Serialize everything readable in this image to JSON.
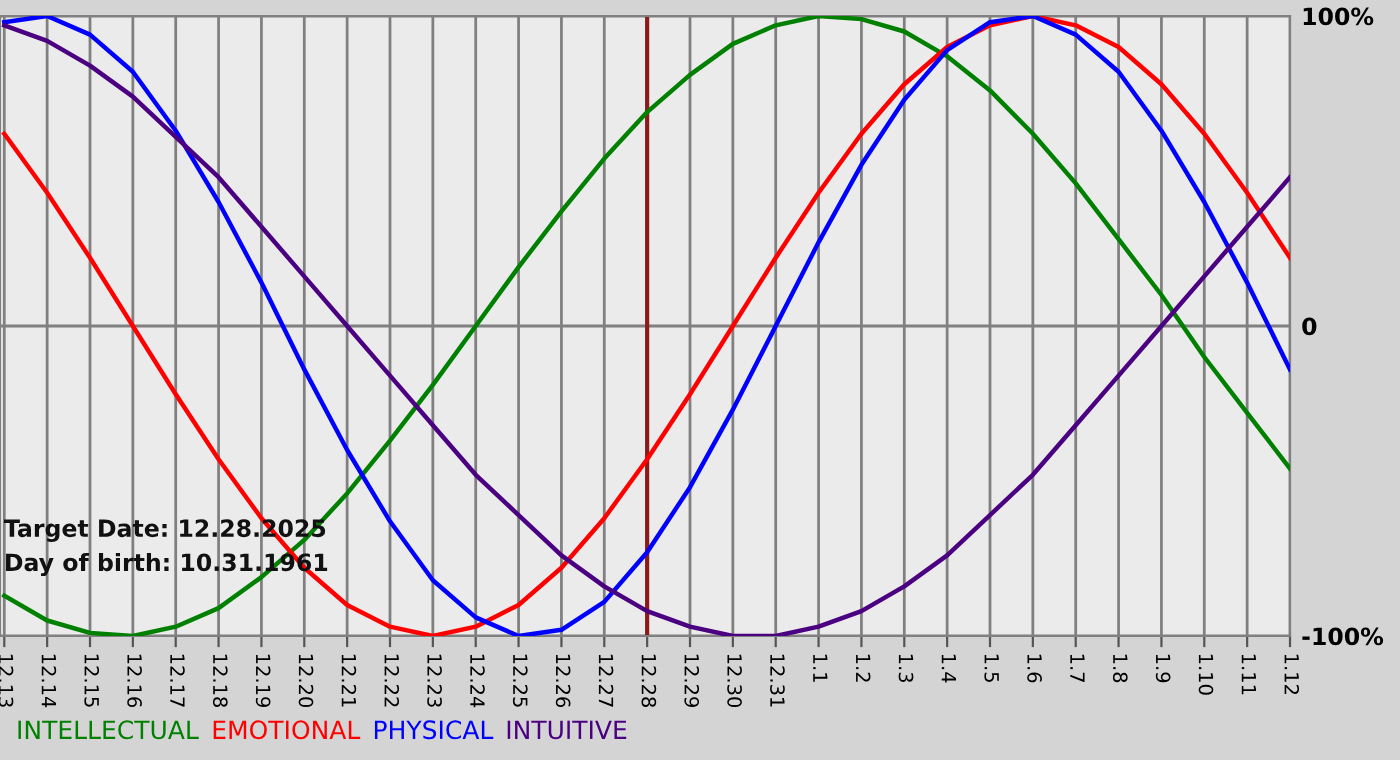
{
  "chart_data": {
    "type": "line",
    "categories": [
      "12.13",
      "12.14",
      "12.15",
      "12.16",
      "12.17",
      "12.18",
      "12.19",
      "12.20",
      "12.21",
      "12.22",
      "12.23",
      "12.24",
      "12.25",
      "12.26",
      "12.27",
      "12.28",
      "12.29",
      "12.30",
      "12.31",
      "1.1",
      "1.2",
      "1.3",
      "1.4",
      "1.5",
      "1.6",
      "1.7",
      "1.8",
      "1.9",
      "1.10",
      "1.11",
      "1.12"
    ],
    "series": [
      {
        "name": "INTELLECTUAL",
        "color": "#008000",
        "values": [
          -87,
          -95,
          -99,
          -100,
          -97,
          -91,
          -81,
          -69,
          -54,
          -37,
          -19,
          0,
          19,
          37,
          54,
          69,
          81,
          91,
          97,
          100,
          99,
          95,
          87,
          76,
          62,
          46,
          28,
          10,
          -10,
          -28,
          -46
        ]
      },
      {
        "name": "EMOTIONAL",
        "color": "#ff0000",
        "values": [
          62,
          43,
          22,
          0,
          -22,
          -43,
          -62,
          -78,
          -90,
          -97,
          -100,
          -97,
          -90,
          -78,
          -62,
          -43,
          -22,
          0,
          22,
          43,
          62,
          78,
          90,
          97,
          100,
          97,
          90,
          78,
          62,
          43,
          22
        ]
      },
      {
        "name": "PHYSICAL",
        "color": "#0000ff",
        "values": [
          98,
          100,
          94,
          82,
          63,
          40,
          14,
          -14,
          -40,
          -63,
          -82,
          -94,
          -100,
          -98,
          -89,
          -73,
          -52,
          -27,
          0,
          27,
          52,
          73,
          89,
          98,
          100,
          94,
          82,
          63,
          40,
          14,
          -14
        ]
      },
      {
        "name": "INTUITIVE",
        "color": "#4b0082",
        "values": [
          97,
          92,
          84,
          74,
          61,
          48,
          32,
          16,
          0,
          -16,
          -32,
          -48,
          -61,
          -74,
          -84,
          -92,
          -97,
          -100,
          -100,
          -97,
          -92,
          -84,
          -74,
          -61,
          -48,
          -32,
          -16,
          0,
          16,
          32,
          48
        ]
      }
    ],
    "ylim": [
      -100,
      100
    ],
    "yticks": [
      {
        "value": 100,
        "label": "100%"
      },
      0,
      {
        "value": -100,
        "label": "-100%"
      }
    ],
    "grid": true,
    "legend": "bottom",
    "marker": "none",
    "line_style": "solid",
    "ref_lines": [
      {
        "axis": "x",
        "value": "12.28",
        "color": "#8b1a1a"
      }
    ],
    "annotations": [
      "Target Date: 12.28.2025",
      "Day of birth: 10.31.1961"
    ]
  }
}
